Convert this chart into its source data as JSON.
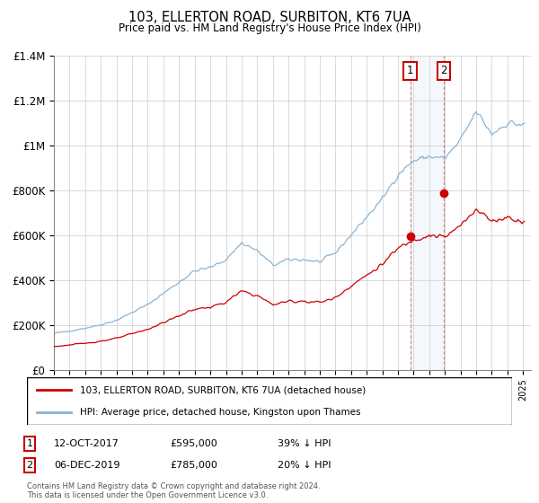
{
  "title": "103, ELLERTON ROAD, SURBITON, KT6 7UA",
  "subtitle": "Price paid vs. HM Land Registry's House Price Index (HPI)",
  "legend_line1": "103, ELLERTON ROAD, SURBITON, KT6 7UA (detached house)",
  "legend_line2": "HPI: Average price, detached house, Kingston upon Thames",
  "annotation1_date": "12-OCT-2017",
  "annotation1_price": "£595,000",
  "annotation1_hpi": "39% ↓ HPI",
  "annotation2_date": "06-DEC-2019",
  "annotation2_price": "£785,000",
  "annotation2_hpi": "20% ↓ HPI",
  "footnote": "Contains HM Land Registry data © Crown copyright and database right 2024.\nThis data is licensed under the Open Government Licence v3.0.",
  "hpi_color": "#8ab4d4",
  "price_color": "#cc0000",
  "annotation_box_color": "#cc0000",
  "ylim": [
    0,
    1400000
  ],
  "yticks": [
    0,
    200000,
    400000,
    600000,
    800000,
    1000000,
    1200000,
    1400000
  ],
  "ytick_labels": [
    "£0",
    "£200K",
    "£400K",
    "£600K",
    "£800K",
    "£1M",
    "£1.2M",
    "£1.4M"
  ],
  "sale1_x": 2017.78,
  "sale1_y": 595000,
  "sale2_x": 2019.92,
  "sale2_y": 785000,
  "xlim_left": 1995,
  "xlim_right": 2025.5
}
